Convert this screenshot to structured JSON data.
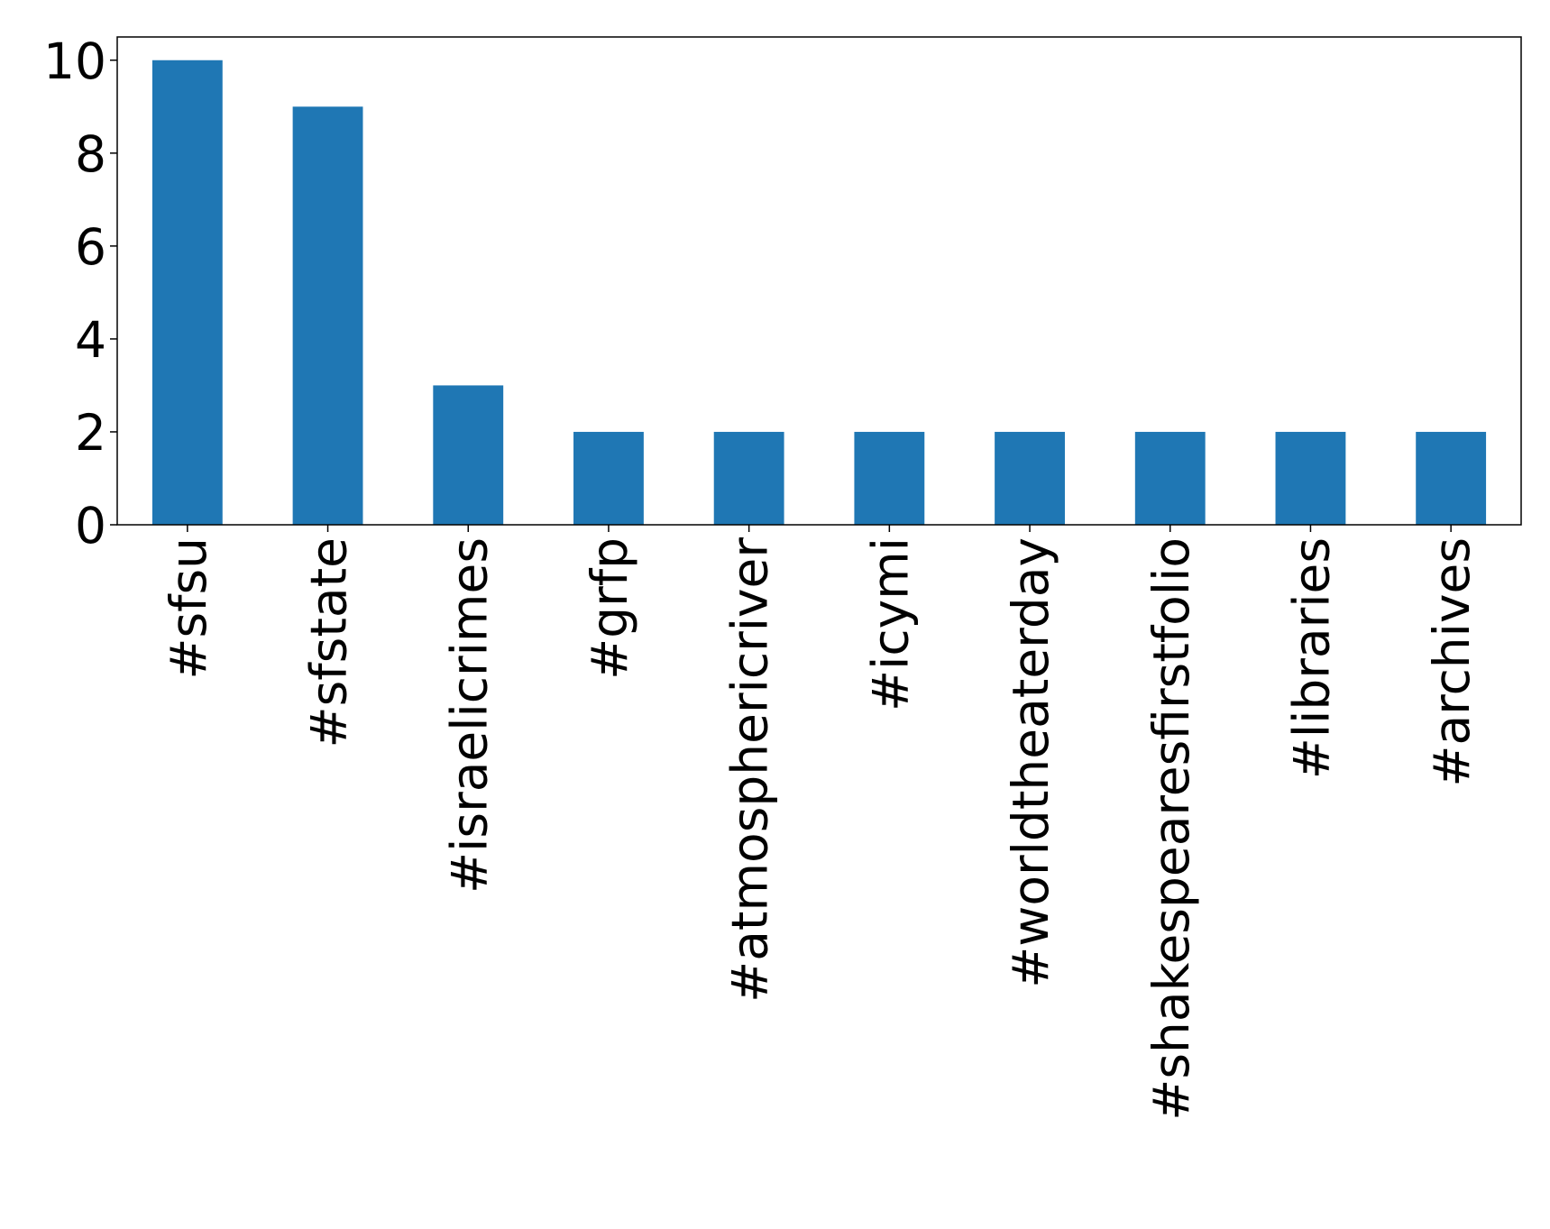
{
  "chart_data": {
    "type": "bar",
    "categories": [
      "#sfsu",
      "#sfstate",
      "#israelicrimes",
      "#grfp",
      "#atmosphericriver",
      "#icymi",
      "#worldtheaterday",
      "#shakespearesfirstfolio",
      "#libraries",
      "#archives"
    ],
    "values": [
      10,
      9,
      3,
      2,
      2,
      2,
      2,
      2,
      2,
      2
    ],
    "color": "#1f77b4",
    "ylim": [
      0,
      10.5
    ],
    "yticks": [
      0,
      2,
      4,
      6,
      8,
      10
    ],
    "grid": false
  }
}
